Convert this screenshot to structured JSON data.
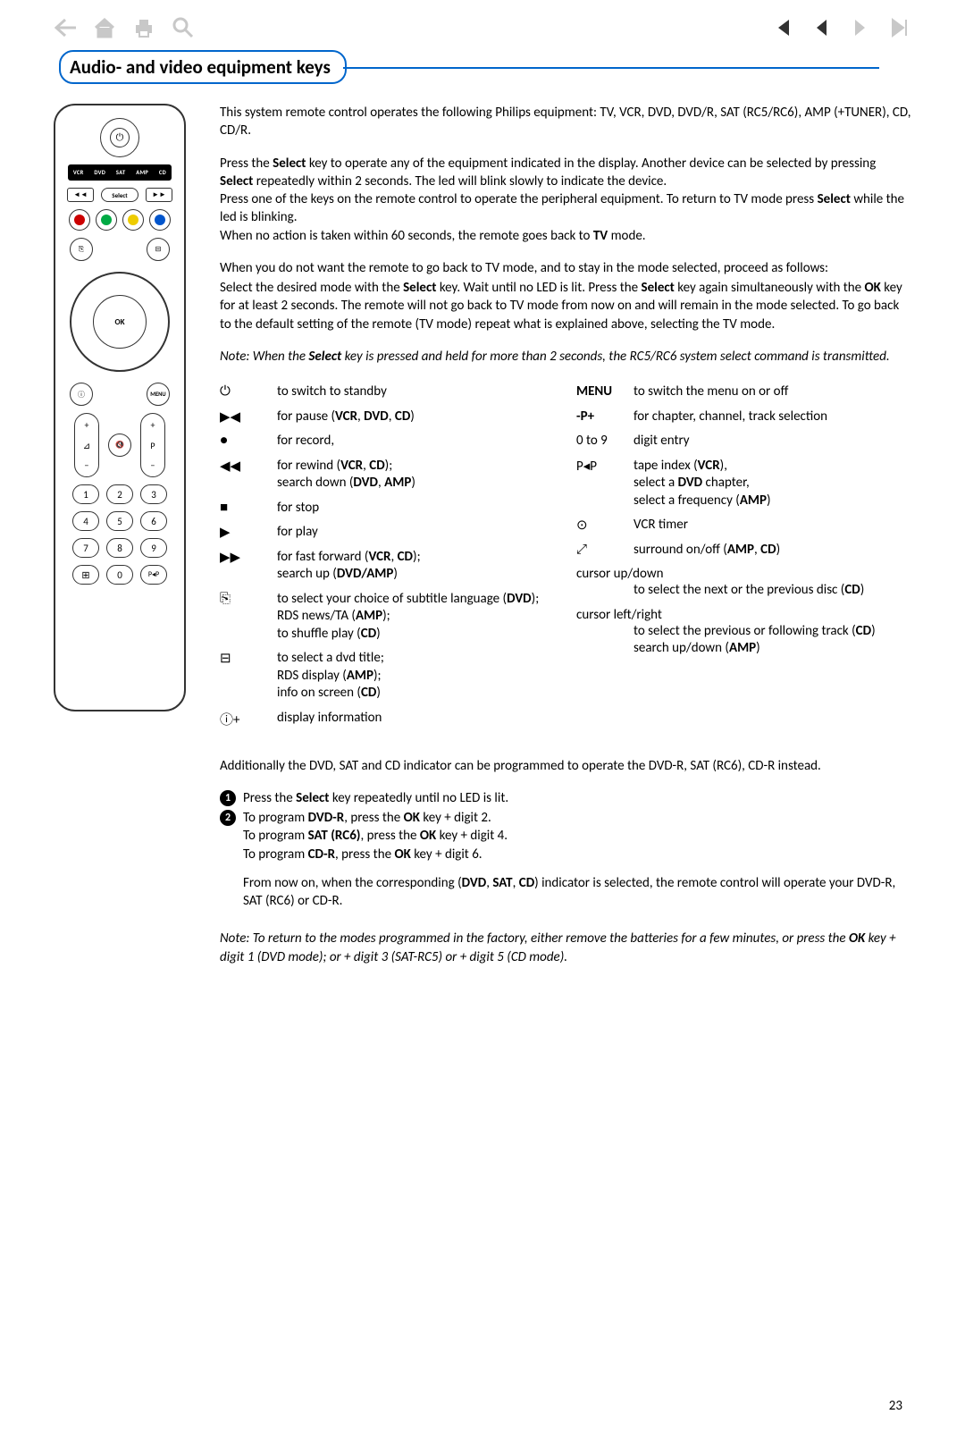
{
  "toolbar": {
    "icons_left": [
      "back-arrow",
      "home",
      "print",
      "search"
    ],
    "icons_right": [
      "first",
      "prev",
      "next",
      "last"
    ]
  },
  "header": {
    "title": "Audio- and video equipment keys"
  },
  "remote": {
    "devices": [
      "VCR",
      "DVD",
      "SAT",
      "AMP",
      "CD"
    ],
    "select_label": "Select",
    "ok_label": "OK",
    "menu_label": "MENU",
    "colors": [
      "#cc0000",
      "#00aa44",
      "#eecc00",
      "#0055cc"
    ],
    "vol_label": "⊿",
    "prog_label": "P",
    "numbers": [
      "1",
      "2",
      "3",
      "4",
      "5",
      "6",
      "7",
      "8",
      "9"
    ],
    "bottom": [
      "⊞",
      "0",
      "P◂P"
    ]
  },
  "para1": "This system remote control operates the following Philips equipment: TV, VCR, DVD, DVD/R, SAT (RC5/RC6), AMP (+TUNER), CD, CD/R.",
  "para2_pre": "Press the ",
  "para2_b1": "Select",
  "para2_mid": " key to operate any of the equipment indicated in the display. Another device can be selected by pressing ",
  "para2_b2": "Select",
  "para2_end": " repeatedly within 2 seconds. The led will blink slowly to indicate the device.",
  "para2b_pre": "Press one of the keys on the remote control to operate the peripheral equipment. To return to TV mode press ",
  "para2b_b": "Select",
  "para2b_mid": " while the led is blinking.",
  "para2c_pre": "When no action is taken within 60 seconds, the remote goes back to ",
  "para2c_b": "TV",
  "para2c_end": " mode.",
  "para3": "When you do not want the remote to go back to TV mode, and to stay in the mode selected, proceed as follows:",
  "para4_pre": "Select the desired mode with the ",
  "para4_b1": "Select",
  "para4_m1": " key. Wait until no LED is lit. Press the ",
  "para4_b2": "Select",
  "para4_m2": " key again simultaneously with the ",
  "para4_b3": "OK",
  "para4_end": " key for at least 2 seconds. The remote will not go back to TV mode from now on and will remain in the mode selected. To go back to the default setting of the remote (TV mode) repeat what is explained above, selecting the TV mode.",
  "note1_pre": "Note: When the ",
  "note1_b": "Select",
  "note1_end": " key is pressed and held for more than 2 seconds, the RC5/RC6 system select command is transmitted.",
  "keys_left": [
    {
      "sym": "⏻",
      "desc": "to switch to standby"
    },
    {
      "sym": "▶◀",
      "desc": "for pause (<b>VCR</b>, <b>DVD</b>, <b>CD</b>)"
    },
    {
      "sym": "●",
      "desc": "for record,"
    },
    {
      "sym": "◀◀",
      "desc": "for rewind (<b>VCR</b>, <b>CD</b>);<br>search down (<b>DVD</b>, <b>AMP</b>)"
    },
    {
      "sym": "■",
      "desc": "for stop"
    },
    {
      "sym": "▶",
      "desc": "for play"
    },
    {
      "sym": "▶▶",
      "desc": "for fast forward (<b>VCR</b>, <b>CD</b>);<br>search up (<b>DVD/AMP</b>)"
    },
    {
      "sym": "⎘",
      "desc": "to select your choice of subtitle language (<b>DVD</b>);<br>RDS news/TA (<b>AMP</b>);<br>to shuffle play (<b>CD</b>)"
    },
    {
      "sym": "⊟",
      "desc": "to select a dvd title;<br>RDS display (<b>AMP</b>);<br>info on screen (<b>CD</b>)"
    },
    {
      "sym": "ⓘ+",
      "desc": "display information"
    }
  ],
  "keys_right": [
    {
      "sym": "<b>MENU</b>",
      "desc": "to switch the menu on or off"
    },
    {
      "sym": "<b>-P+</b>",
      "desc": "for chapter, channel, track selection"
    },
    {
      "sym": "0 to 9",
      "desc": "digit entry"
    },
    {
      "sym": "P◂P",
      "desc": "tape index (<b>VCR</b>),<br>select a <b>DVD</b> chapter,<br>select a frequency (<b>AMP</b>)"
    },
    {
      "sym": "⊙",
      "desc": "VCR timer"
    },
    {
      "sym": "⤢",
      "desc": "surround on/off (<b>AMP</b>, <b>CD</b>)"
    },
    {
      "sym": "cursor up/down",
      "desc": "to select the next or the previous disc (<b>CD</b>)",
      "wide": true
    },
    {
      "sym": "cursor left/right",
      "desc": "to select the previous or following track (<b>CD</b>)<br>search up/down (<b>AMP</b>)",
      "wide": true
    }
  ],
  "para5": "Additionally the DVD, SAT and CD indicator can be programmed to operate the DVD-R, SAT (RC6), CD-R instead.",
  "step1_pre": "Press the ",
  "step1_b": "Select",
  "step1_end": " key repeatedly until no LED is lit.",
  "step2_l1_pre": "To program ",
  "step2_l1_b1": "DVD-R",
  "step2_l1_m": ", press the ",
  "step2_l1_b2": "OK",
  "step2_l1_end": " key + digit 2.",
  "step2_l2_pre": "To program ",
  "step2_l2_b1": "SAT (RC6)",
  "step2_l2_m": ", press the ",
  "step2_l2_b2": "OK",
  "step2_l2_end": " key + digit 4.",
  "step2_l3_pre": "To program ",
  "step2_l3_b1": "CD-R",
  "step2_l3_m": ", press the ",
  "step2_l3_b2": "OK",
  "step2_l3_end": " key + digit 6.",
  "para6_pre": "From now on, when the corresponding (",
  "para6_b": "DVD",
  "para6_m1": ", ",
  "para6_b2": "SAT",
  "para6_m2": ", ",
  "para6_b3": "CD",
  "para6_end": ") indicator is selected, the remote control will operate your DVD-R, SAT (RC6) or CD-R.",
  "note2_pre": "Note: To return to the modes programmed in the factory, either remove the batteries for a few minutes, or press the ",
  "note2_b": "OK",
  "note2_end": " key + digit 1 (DVD mode); or + digit 3 (SAT-RC5) or + digit 5 (CD mode).",
  "page_number": "23"
}
